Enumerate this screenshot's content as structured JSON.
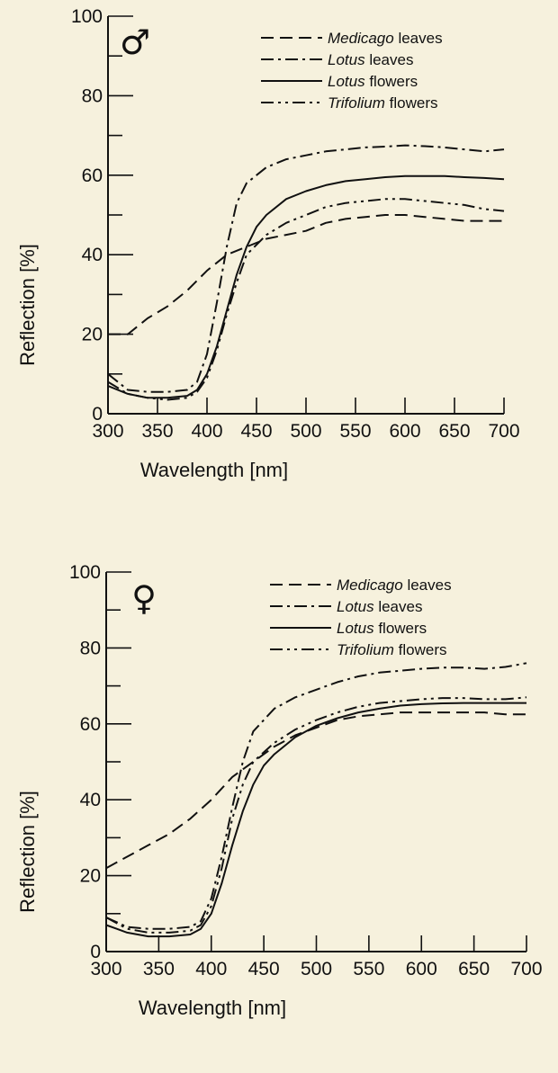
{
  "chart_data": [
    {
      "type": "line",
      "panel_symbol": "♂",
      "xlabel": "Wavelength [nm]",
      "ylabel": "Reflection [%]",
      "xlim": [
        300,
        700
      ],
      "ylim": [
        0,
        100
      ],
      "x_ticks": [
        300,
        350,
        400,
        450,
        500,
        550,
        600,
        650,
        700
      ],
      "y_ticks": [
        0,
        20,
        40,
        60,
        80,
        100
      ],
      "grid": false,
      "legend_position": "top-right",
      "series": [
        {
          "name_italic": "Medicago",
          "name_rest": " leaves",
          "style": "dashed",
          "x": [
            300,
            320,
            340,
            360,
            380,
            400,
            420,
            440,
            460,
            480,
            500,
            520,
            540,
            560,
            580,
            600,
            620,
            640,
            660,
            680,
            700
          ],
          "y": [
            20,
            20,
            24,
            27,
            31,
            36,
            40,
            42,
            44,
            45,
            46,
            48,
            49,
            49.5,
            50,
            50,
            49.5,
            49,
            48.5,
            48.5,
            48.5
          ]
        },
        {
          "name_italic": "Lotus",
          "name_rest": " leaves",
          "style": "dashdot",
          "x": [
            300,
            320,
            340,
            360,
            380,
            390,
            400,
            410,
            420,
            430,
            440,
            460,
            480,
            500,
            520,
            540,
            560,
            580,
            600,
            620,
            640,
            660,
            680,
            700
          ],
          "y": [
            10,
            6,
            5.5,
            5.5,
            6,
            8,
            15,
            28,
            42,
            53,
            58,
            62,
            64,
            65,
            66,
            66.5,
            67,
            67.2,
            67.5,
            67.3,
            67,
            66.5,
            66,
            66.5
          ]
        },
        {
          "name_italic": "Lotus",
          "name_rest": " flowers",
          "style": "solid",
          "x": [
            300,
            320,
            340,
            360,
            380,
            390,
            400,
            410,
            420,
            430,
            440,
            450,
            460,
            480,
            500,
            520,
            540,
            560,
            580,
            600,
            620,
            640,
            660,
            680,
            700
          ],
          "y": [
            7,
            5,
            4,
            4,
            4.5,
            6,
            10,
            17,
            26,
            35,
            42,
            47,
            50,
            54,
            56,
            57.5,
            58.5,
            59,
            59.5,
            59.8,
            59.8,
            59.8,
            59.5,
            59.3,
            59
          ]
        },
        {
          "name_italic": "Trifolium",
          "name_rest": " flowers",
          "style": "dashdotdot",
          "x": [
            300,
            320,
            340,
            360,
            380,
            390,
            400,
            410,
            420,
            430,
            440,
            460,
            480,
            500,
            520,
            540,
            560,
            580,
            600,
            620,
            640,
            660,
            680,
            700
          ],
          "y": [
            8,
            5,
            4,
            3.5,
            4,
            5.5,
            9,
            16,
            25,
            33,
            40,
            45,
            48,
            50,
            52,
            53,
            53.5,
            54,
            54,
            53.5,
            53,
            52.5,
            51.5,
            51
          ]
        }
      ]
    },
    {
      "type": "line",
      "panel_symbol": "♀",
      "xlabel": "Wavelength [nm]",
      "ylabel": "Reflection [%]",
      "xlim": [
        300,
        700
      ],
      "ylim": [
        0,
        100
      ],
      "x_ticks": [
        300,
        350,
        400,
        450,
        500,
        550,
        600,
        650,
        700
      ],
      "y_ticks": [
        0,
        20,
        40,
        60,
        80,
        100
      ],
      "grid": false,
      "legend_position": "top-right",
      "series": [
        {
          "name_italic": "Medicago",
          "name_rest": " leaves",
          "style": "dashed",
          "x": [
            300,
            320,
            340,
            360,
            380,
            400,
            420,
            440,
            460,
            480,
            500,
            520,
            540,
            560,
            580,
            600,
            620,
            640,
            660,
            680,
            700
          ],
          "y": [
            22,
            25,
            28,
            31,
            35,
            40,
            46,
            50,
            54,
            57,
            59,
            61,
            62,
            62.5,
            63,
            63,
            63,
            63,
            63,
            62.5,
            62.5
          ]
        },
        {
          "name_italic": "Lotus",
          "name_rest": " leaves",
          "style": "dashdot",
          "x": [
            300,
            320,
            340,
            360,
            380,
            390,
            400,
            410,
            420,
            430,
            440,
            460,
            480,
            500,
            520,
            540,
            560,
            580,
            600,
            620,
            640,
            660,
            680,
            700
          ],
          "y": [
            9,
            6.5,
            6,
            6,
            6.5,
            8,
            14,
            25,
            38,
            50,
            58,
            64,
            67,
            69,
            71,
            72.5,
            73.5,
            74,
            74.5,
            74.8,
            74.8,
            74.5,
            75,
            76
          ]
        },
        {
          "name_italic": "Lotus",
          "name_rest": " flowers",
          "style": "solid",
          "x": [
            300,
            320,
            340,
            360,
            380,
            390,
            400,
            410,
            420,
            430,
            440,
            450,
            460,
            480,
            500,
            520,
            540,
            560,
            580,
            600,
            620,
            640,
            660,
            680,
            700
          ],
          "y": [
            7,
            5,
            4,
            4,
            4.5,
            6,
            10,
            18,
            28,
            37,
            44,
            49,
            52,
            56.5,
            59.5,
            61.5,
            63,
            64,
            64.8,
            65.2,
            65.4,
            65.5,
            65.5,
            65.5,
            65.5
          ]
        },
        {
          "name_italic": "Trifolium",
          "name_rest": " flowers",
          "style": "dashdotdot",
          "x": [
            300,
            320,
            340,
            360,
            380,
            390,
            400,
            410,
            420,
            430,
            440,
            460,
            480,
            500,
            520,
            540,
            560,
            580,
            600,
            620,
            640,
            660,
            680,
            700
          ],
          "y": [
            9,
            6,
            5,
            5,
            5.5,
            7,
            12,
            22,
            35,
            44,
            50,
            55,
            58.5,
            61,
            63,
            64.5,
            65.5,
            66,
            66.5,
            66.8,
            66.8,
            66.5,
            66.5,
            67
          ]
        }
      ]
    }
  ]
}
